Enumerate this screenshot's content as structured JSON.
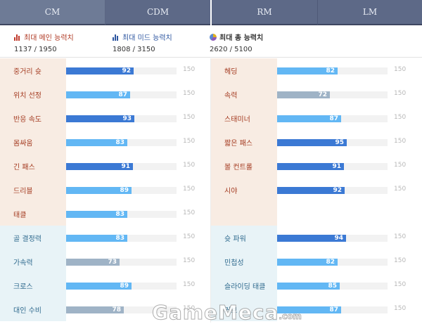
{
  "tabs": [
    {
      "label": "CM"
    },
    {
      "label": "CDM"
    },
    {
      "label": "RM"
    },
    {
      "label": "LM"
    }
  ],
  "summary": {
    "main": {
      "label": "최대 메인 능력치",
      "value": "1137 / 1950"
    },
    "mid": {
      "label": "최대 미드 능력치",
      "value": "1808 / 3150"
    },
    "total": {
      "label": "최대 총 능력치",
      "value": "2620 / 5100"
    }
  },
  "left_stats": [
    {
      "name": "중거리 슛",
      "value": 92,
      "max": "150",
      "group": "warm",
      "shade": "dark"
    },
    {
      "name": "위치 선정",
      "value": 87,
      "max": "150",
      "group": "warm",
      "shade": "light"
    },
    {
      "name": "반응 속도",
      "value": 93,
      "max": "150",
      "group": "warm",
      "shade": "dark"
    },
    {
      "name": "몸싸움",
      "value": 83,
      "max": "150",
      "group": "warm",
      "shade": "light"
    },
    {
      "name": "긴 패스",
      "value": 91,
      "max": "150",
      "group": "warm",
      "shade": "dark"
    },
    {
      "name": "드리블",
      "value": 89,
      "max": "150",
      "group": "warm",
      "shade": "light"
    },
    {
      "name": "태클",
      "value": 83,
      "max": "150",
      "group": "warm",
      "shade": "light"
    },
    {
      "name": "골 결정력",
      "value": 83,
      "max": "150",
      "group": "cool",
      "shade": "light"
    },
    {
      "name": "가속력",
      "value": 73,
      "max": "150",
      "group": "cool",
      "shade": "gray"
    },
    {
      "name": "크로스",
      "value": 89,
      "max": "150",
      "group": "cool",
      "shade": "light"
    },
    {
      "name": "대인 수비",
      "value": 78,
      "max": "150",
      "group": "cool",
      "shade": "gray"
    }
  ],
  "right_stats": [
    {
      "name": "헤딩",
      "value": 82,
      "max": "150",
      "group": "warm",
      "shade": "light"
    },
    {
      "name": "속력",
      "value": 72,
      "max": "150",
      "group": "warm",
      "shade": "gray"
    },
    {
      "name": "스태미너",
      "value": 87,
      "max": "150",
      "group": "warm",
      "shade": "light"
    },
    {
      "name": "짧은 패스",
      "value": 95,
      "max": "150",
      "group": "warm",
      "shade": "dark"
    },
    {
      "name": "볼 컨트롤",
      "value": 91,
      "max": "150",
      "group": "warm",
      "shade": "dark"
    },
    {
      "name": "시야",
      "value": 92,
      "max": "150",
      "group": "warm",
      "shade": "dark"
    },
    {
      "name": "",
      "value": null,
      "max": "",
      "group": "warm",
      "shade": ""
    },
    {
      "name": "슛 파워",
      "value": 94,
      "max": "150",
      "group": "cool",
      "shade": "dark"
    },
    {
      "name": "민첩성",
      "value": 82,
      "max": "150",
      "group": "cool",
      "shade": "light"
    },
    {
      "name": "슬라이딩 태클",
      "value": 85,
      "max": "150",
      "group": "cool",
      "shade": "light"
    },
    {
      "name": "커브",
      "value": 87,
      "max": "150",
      "group": "cool",
      "shade": "light"
    }
  ],
  "watermark": {
    "text": "GameMeca",
    "suffix": ".com"
  }
}
